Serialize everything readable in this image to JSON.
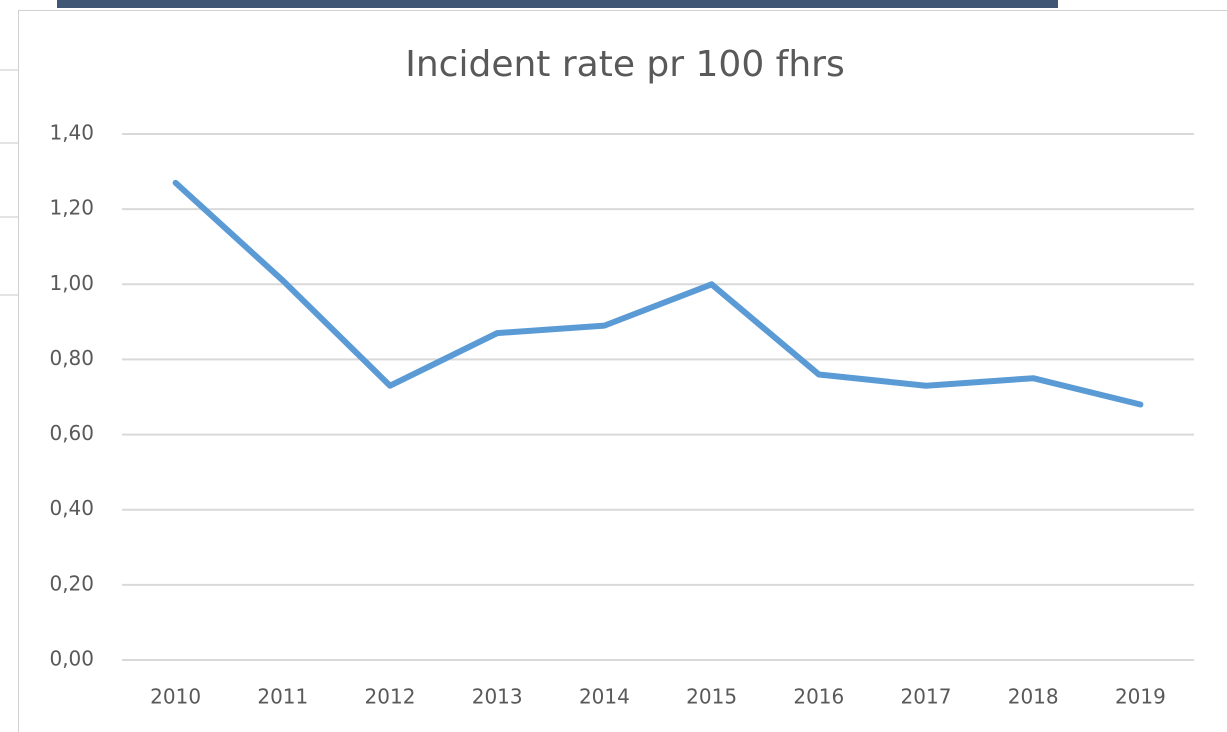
{
  "chart_data": {
    "type": "line",
    "title": "Incident rate pr 100 fhrs",
    "categories": [
      "2010",
      "2011",
      "2012",
      "2013",
      "2014",
      "2015",
      "2016",
      "2017",
      "2018",
      "2019"
    ],
    "series": [
      {
        "color": "#5b9bd5",
        "values": [
          1.27,
          1.01,
          0.73,
          0.87,
          0.89,
          1.0,
          0.76,
          0.73,
          0.75,
          0.68
        ]
      }
    ],
    "ylim": [
      0,
      1.4
    ],
    "yticks": [
      {
        "value": 0,
        "label": "0,00"
      },
      {
        "value": 0.2,
        "label": "0,20"
      },
      {
        "value": 0.4,
        "label": "0,40"
      },
      {
        "value": 0.6,
        "label": "0,60"
      },
      {
        "value": 0.8,
        "label": "0,80"
      },
      {
        "value": 1.0,
        "label": "1,00"
      },
      {
        "value": 1.2,
        "label": "1,20"
      },
      {
        "value": 1.4,
        "label": "1,40"
      }
    ],
    "grid": true
  }
}
